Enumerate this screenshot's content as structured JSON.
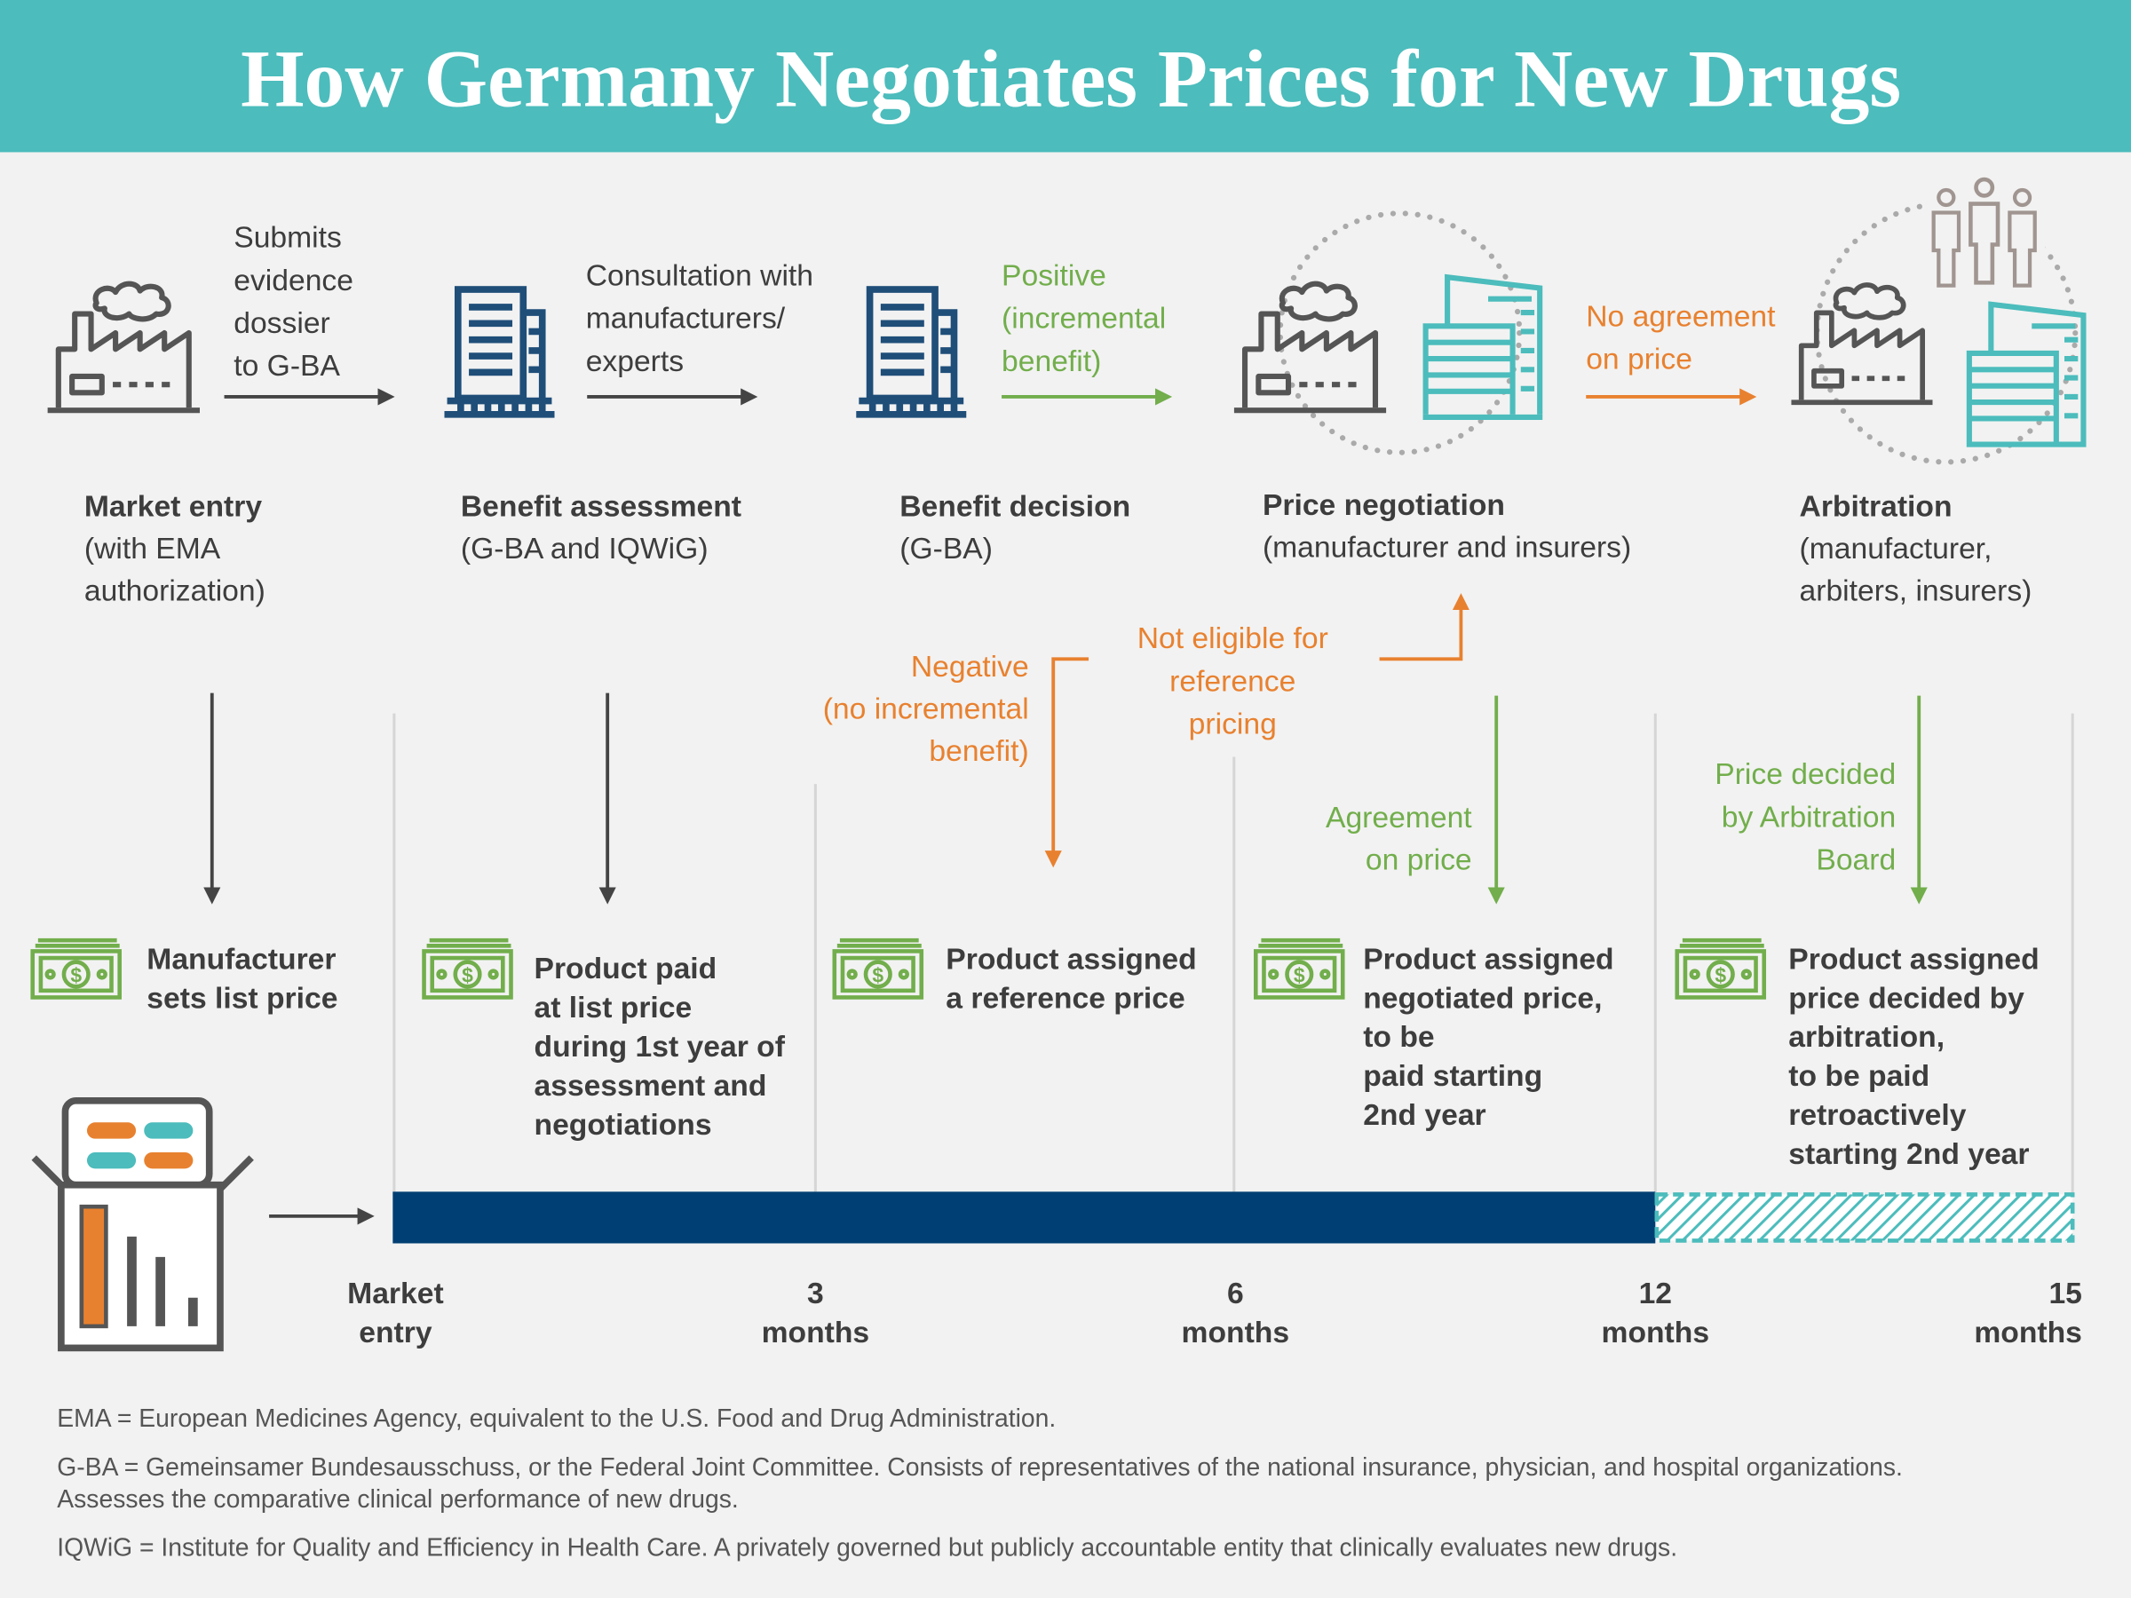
{
  "title": "How Germany Negotiates Prices for New Drugs",
  "stages": [
    {
      "name": "Market entry",
      "detail": [
        "(with EMA",
        "authorization)"
      ]
    },
    {
      "name": "Benefit assessment",
      "detail": [
        "(G-BA and IQWiG)"
      ]
    },
    {
      "name": "Benefit decision",
      "detail": [
        "(G-BA)"
      ]
    },
    {
      "name": "Price negotiation",
      "detail": [
        "(manufacturer and insurers)"
      ]
    },
    {
      "name": "Arbitration",
      "detail": [
        "(manufacturer,",
        "arbiters, insurers)"
      ]
    }
  ],
  "transitions": [
    [
      "Submits",
      "evidence",
      "dossier",
      "to G-BA"
    ],
    [
      "Consultation with",
      "manufacturers/",
      "experts"
    ],
    [
      "Positive",
      "(incremental",
      "benefit)"
    ],
    [
      "No agreement",
      "on price"
    ]
  ],
  "branches": {
    "negative": [
      "Negative",
      "(no incremental",
      "benefit)"
    ],
    "not_eligible": [
      "Not eligible for",
      "reference",
      "pricing"
    ],
    "agreement": [
      "Agreement",
      "on price"
    ],
    "arbitration": [
      "Price decided",
      "by Arbitration",
      "Board"
    ]
  },
  "outcomes": [
    [
      "Manufacturer",
      "sets list price"
    ],
    [
      "Product paid",
      "at list price",
      "during 1st year of",
      "assessment and",
      "negotiations"
    ],
    [
      "Product assigned",
      "a reference price"
    ],
    [
      "Product assigned",
      "negotiated price,",
      "to be",
      "paid starting",
      "2nd year"
    ],
    [
      "Product assigned",
      "price decided by",
      "arbitration,",
      "to be paid",
      "retroactively",
      "starting 2nd year"
    ]
  ],
  "timeline": [
    [
      "Market",
      "entry"
    ],
    [
      "3",
      "months"
    ],
    [
      "6",
      "months"
    ],
    [
      "12",
      "months"
    ],
    [
      "15",
      "months"
    ]
  ],
  "footnotes": [
    [
      "EMA = European Medicines Agency, equivalent to the U.S. Food and Drug Administration."
    ],
    [
      "G-BA = Gemeinsamer Bundesausschuss, or the Federal Joint Committee. Consists of representatives of the national insurance, physician, and hospital organizations.",
      "Assesses the comparative clinical performance of new drugs."
    ],
    [
      "IQWiG = Institute for Quality and Efficiency in Health Care. A privately governed but publicly accountable entity that clinically evaluates new drugs."
    ]
  ]
}
